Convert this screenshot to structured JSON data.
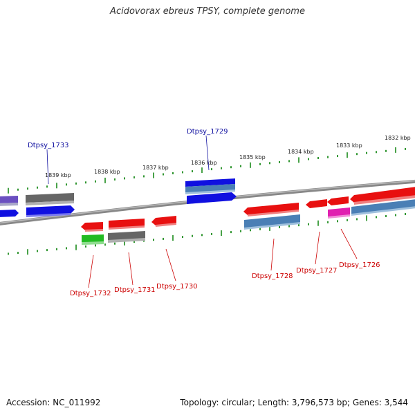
{
  "title": "Acidovorax ebreus TPSY, complete genome",
  "footer": {
    "accession": "Accession: NC_011992",
    "summary": "Topology: circular; Length: 3,796,573 bp; Genes: 3,544"
  },
  "colors": {
    "backbone": "#888888",
    "tick": "#1a8a1a",
    "label_forward": "#1010a0",
    "label_reverse": "#cc0000",
    "blue": "#1010e0",
    "steelblue": "#4a7fb5",
    "gray": "#666666",
    "red": "#e81010",
    "green": "#22bb22",
    "magenta": "#e020b0",
    "purple": "#6a4fc0"
  },
  "scale_labels": [
    "1839 kbp",
    "1838 kbp",
    "1837 kbp",
    "1836 kbp",
    "1835 kbp",
    "1834 kbp",
    "1833 kbp",
    "1832 kbp"
  ],
  "gene_labels": {
    "Dtpsy_1733": "Dtpsy_1733",
    "Dtpsy_1729": "Dtpsy_1729",
    "Dtpsy_1732": "Dtpsy_1732",
    "Dtpsy_1731": "Dtpsy_1731",
    "Dtpsy_1730": "Dtpsy_1730",
    "Dtpsy_1728": "Dtpsy_1728",
    "Dtpsy_1727": "Dtpsy_1727",
    "Dtpsy_1726": "Dtpsy_1726"
  }
}
